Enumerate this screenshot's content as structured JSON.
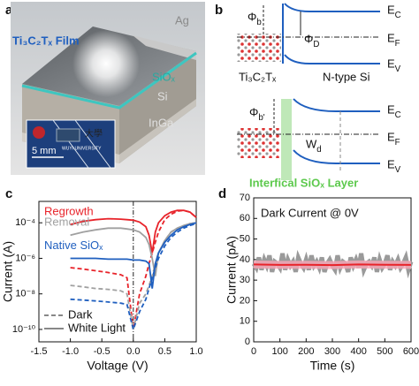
{
  "panel_labels": [
    "a",
    "b",
    "c",
    "d"
  ],
  "panel_a": {
    "film": "Ti₃C₂Tₓ Film",
    "ag": "Ag",
    "siox": "SiOₓ",
    "si": "Si",
    "inga": "InGa",
    "scale": "5 mm",
    "logo_cn": "大學",
    "logo_en": "WUYI UNIVERSITY"
  },
  "panel_b": {
    "top": {
      "phi": "Φb",
      "phi_d": "ΦD",
      "ec": "EC",
      "ef": "EF",
      "ev": "EV",
      "metal": "Ti₃C₂Tₓ",
      "semi": "N-type Si"
    },
    "bottom": {
      "phi": "Φb'",
      "wd": "Wd",
      "ec": "EC",
      "ef": "EF",
      "ev": "EV",
      "layer": "Interfical SiOₓ Layer"
    }
  },
  "chart_data": [
    {
      "type": "line",
      "log_y": true,
      "legend": "lower left",
      "xlabel": "Voltage (V)",
      "ylabel": "Current (A)",
      "line_styles": {
        "dark": "Dark",
        "light": "White Light"
      },
      "x": [
        -1.0,
        -0.8,
        -0.6,
        -0.4,
        -0.2,
        -0.1,
        0,
        0.1,
        0.2,
        0.25,
        0.3,
        0.35,
        0.4,
        0.5,
        0.6,
        0.7,
        0.8,
        0.9,
        1.0
      ],
      "series": [
        {
          "name": "Regrowth",
          "color": "#e8232a",
          "values": [
            8e-05,
            0.00012,
            0.00015,
            0.00017,
            0.00016,
            0.00015,
            0.00014,
            0.00011,
            6e-05,
            2e-05,
            2e-06,
            3e-05,
            0.0001,
            0.00025,
            0.0004,
            0.0005,
            0.0005,
            0.0004,
            0.0002
          ],
          "dark_values": [
            3e-07,
            2.5e-07,
            2e-07,
            1.6e-07,
            1.2e-07,
            8e-08,
            1e-10,
            1e-08,
            1e-07,
            5e-07,
            2e-06,
            8e-06,
            3e-05,
            0.00015,
            0.0003,
            0.00045,
            0.0005,
            0.0004,
            0.0002
          ]
        },
        {
          "name": "Removal",
          "color": "#a0a0a0",
          "values": [
            2e-05,
            3e-05,
            4e-05,
            5e-05,
            5e-05,
            4.5e-05,
            4e-05,
            3e-05,
            1.5e-05,
            6e-06,
            1e-06,
            1e-07,
            2e-06,
            1e-05,
            3e-05,
            5e-05,
            7e-05,
            9e-05,
            0.0001
          ],
          "dark_values": [
            3e-08,
            2.5e-08,
            2e-08,
            1.8e-08,
            1.5e-08,
            1e-08,
            1e-10,
            3e-09,
            1e-08,
            3e-08,
            1e-07,
            5e-07,
            2e-06,
            1e-05,
            3e-05,
            5e-05,
            7e-05,
            9e-05,
            0.0001
          ]
        },
        {
          "name": "Native SiOₓ",
          "color": "#1f5fbf",
          "values": [
            1e-06,
            1e-06,
            1e-06,
            9e-07,
            9e-07,
            9e-07,
            8e-07,
            8e-07,
            7e-07,
            5e-07,
            2e-08,
            5e-07,
            2e-06,
            8e-06,
            2e-05,
            4e-05,
            6e-05,
            8e-05,
            0.0001
          ],
          "dark_values": [
            5e-09,
            4.5e-09,
            4e-09,
            3.5e-09,
            3e-09,
            2.5e-09,
            1e-10,
            1e-09,
            5e-09,
            2e-08,
            8e-08,
            3e-07,
            1e-06,
            5e-06,
            1.5e-05,
            3e-05,
            5e-05,
            7e-05,
            9e-05
          ]
        }
      ],
      "xlim": [
        -1.5,
        1.0
      ],
      "xticks": [
        -1.5,
        {
          "value": -1.0,
          "label": "-1.0"
        },
        -0.5,
        {
          "value": 0,
          "label": "0.0"
        },
        0.5,
        {
          "value": 1.0,
          "label": "1.0"
        }
      ],
      "ylim": [
        2e-11,
        0.0016
      ],
      "yticks": [
        {
          "value": 1e-10,
          "label": "10⁻¹⁰"
        },
        {
          "value": 1e-08,
          "label": "10⁻⁸"
        },
        {
          "value": 1e-06,
          "label": "10⁻⁶"
        },
        {
          "value": 0.0001,
          "label": "10⁻⁴"
        }
      ]
    },
    {
      "type": "trace",
      "title": "Dark Current @ 0V",
      "xlabel": "Time (s)",
      "ylabel": "Current (pA)",
      "series": [
        {
          "color": "#9a9a9a",
          "x": [
            0,
            10,
            20,
            30,
            40,
            50,
            60,
            70,
            80,
            90,
            100,
            110,
            120,
            130,
            140,
            150,
            160,
            170,
            180,
            190,
            200,
            210,
            220,
            230,
            240,
            250,
            260,
            270,
            280,
            290,
            300,
            310,
            320,
            330,
            340,
            350,
            360,
            370,
            380,
            390,
            400,
            410,
            420,
            430,
            440,
            450,
            460,
            470,
            480,
            490,
            500,
            510,
            520,
            530,
            540,
            550,
            560,
            570,
            580,
            590,
            600
          ],
          "values": [
            38,
            36,
            41,
            35,
            40,
            37,
            42,
            34,
            39,
            38,
            36,
            43,
            35,
            40,
            37,
            39,
            34,
            41,
            38,
            36,
            40,
            35,
            42,
            37,
            39,
            36,
            41,
            34,
            38,
            40,
            37,
            35,
            42,
            36,
            39,
            38,
            34,
            41,
            37,
            40,
            36,
            43,
            35,
            38,
            39,
            37,
            41,
            34,
            40,
            36,
            38,
            42,
            35,
            39,
            37,
            40,
            36,
            38,
            41,
            35,
            39
          ]
        },
        {
          "color": "#e8232a",
          "glow": true,
          "x": [
            0,
            100,
            200,
            300,
            400,
            500,
            600
          ],
          "values": [
            37.6,
            37.4,
            37.5,
            37.3,
            37.6,
            37.5,
            37.4
          ]
        }
      ],
      "xlim": [
        0,
        600
      ],
      "xticks": [
        0,
        100,
        200,
        300,
        400,
        500,
        600
      ],
      "ylim": [
        0,
        70
      ],
      "yticks": [
        0,
        10,
        20,
        30,
        40,
        50,
        60,
        70
      ]
    }
  ]
}
